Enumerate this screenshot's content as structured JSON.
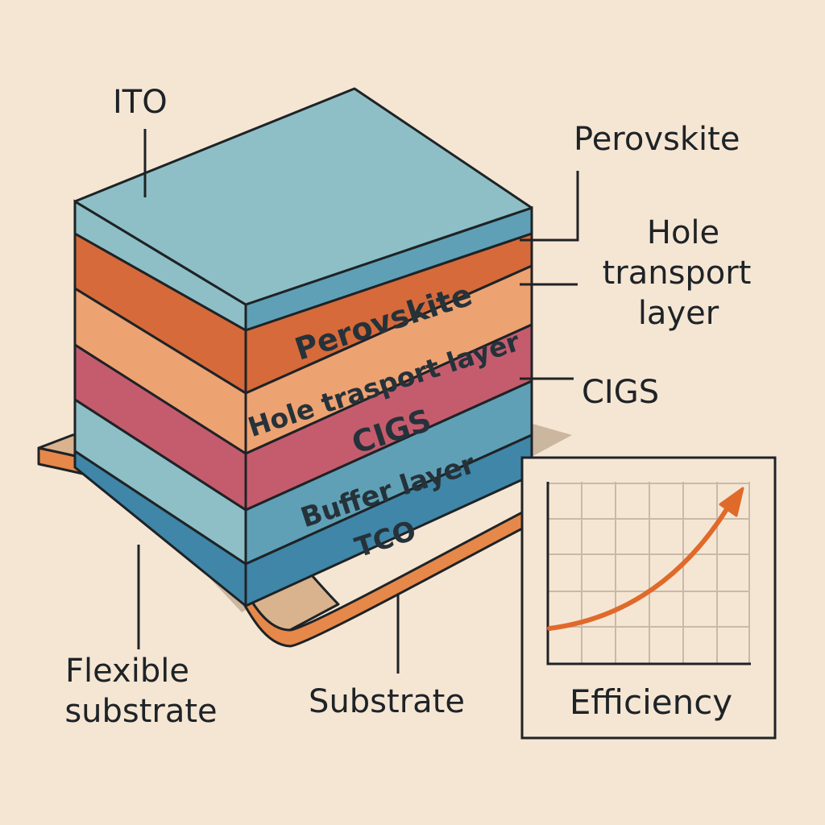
{
  "labels": {
    "ito": "ITO",
    "perovskite": "Perovskite",
    "hole_transport_line1": "Hole",
    "hole_transport_line2": "transport",
    "hole_transport_line3": "layer",
    "cigs": "CIGS",
    "flexible_line1": "Flexible",
    "flexible_line2": "substrate",
    "substrate": "Substrate"
  },
  "face_labels": {
    "perovskite": "Perovskite",
    "hole_transport": "Hole trasport layer",
    "cigs": "CIGS",
    "buffer": "Buffer layer",
    "tco": "TCO"
  },
  "inset": {
    "caption": "Efficiency",
    "trend": "increasing"
  },
  "colors": {
    "background": "#f5e6d4",
    "ito": "#8ebfc6",
    "perovskite": "#d66a3a",
    "hole_transport": "#eda272",
    "cigs": "#c55c6e",
    "buffer": "#5fa0b6",
    "tco": "#3f86a8",
    "substrate": "#e6884a",
    "outline": "#1e2326"
  }
}
